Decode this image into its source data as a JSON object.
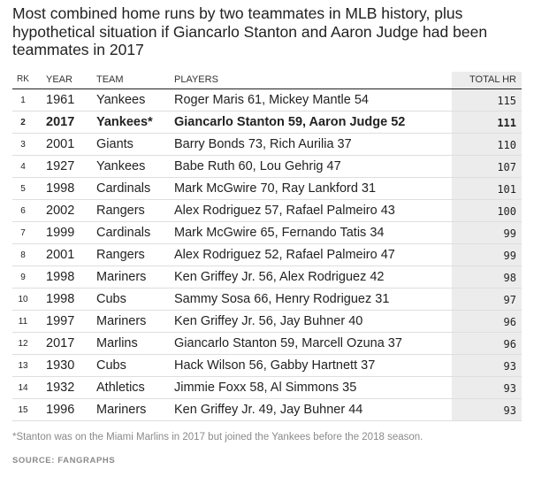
{
  "chart_data": {
    "type": "table",
    "title": "Most combined home runs by two teammates in MLB history, plus hypothetical situation if Giancarlo Stanton and Aaron Judge had been teammates in 2017",
    "columns": [
      "RK",
      "YEAR",
      "TEAM",
      "PLAYERS",
      "TOTAL HR"
    ],
    "rows": [
      {
        "rk": "1",
        "year": "1961",
        "team": "Yankees",
        "players": "Roger Maris 61, Mickey Mantle 54",
        "total_hr": "115",
        "highlight": false
      },
      {
        "rk": "2",
        "year": "2017",
        "team": "Yankees*",
        "players": "Giancarlo Stanton 59, Aaron Judge 52",
        "total_hr": "111",
        "highlight": true
      },
      {
        "rk": "3",
        "year": "2001",
        "team": "Giants",
        "players": "Barry Bonds 73, Rich Aurilia 37",
        "total_hr": "110",
        "highlight": false
      },
      {
        "rk": "4",
        "year": "1927",
        "team": "Yankees",
        "players": "Babe Ruth 60, Lou Gehrig 47",
        "total_hr": "107",
        "highlight": false
      },
      {
        "rk": "5",
        "year": "1998",
        "team": "Cardinals",
        "players": "Mark McGwire 70, Ray Lankford 31",
        "total_hr": "101",
        "highlight": false
      },
      {
        "rk": "6",
        "year": "2002",
        "team": "Rangers",
        "players": "Alex Rodriguez 57, Rafael Palmeiro 43",
        "total_hr": "100",
        "highlight": false
      },
      {
        "rk": "7",
        "year": "1999",
        "team": "Cardinals",
        "players": "Mark McGwire 65, Fernando Tatis 34",
        "total_hr": "99",
        "highlight": false
      },
      {
        "rk": "8",
        "year": "2001",
        "team": "Rangers",
        "players": "Alex Rodriguez 52, Rafael Palmeiro 47",
        "total_hr": "99",
        "highlight": false
      },
      {
        "rk": "9",
        "year": "1998",
        "team": "Mariners",
        "players": "Ken Griffey Jr. 56, Alex Rodriguez 42",
        "total_hr": "98",
        "highlight": false
      },
      {
        "rk": "10",
        "year": "1998",
        "team": "Cubs",
        "players": "Sammy Sosa 66, Henry Rodriguez 31",
        "total_hr": "97",
        "highlight": false
      },
      {
        "rk": "11",
        "year": "1997",
        "team": "Mariners",
        "players": "Ken Griffey Jr. 56, Jay Buhner 40",
        "total_hr": "96",
        "highlight": false
      },
      {
        "rk": "12",
        "year": "2017",
        "team": "Marlins",
        "players": "Giancarlo Stanton 59, Marcell Ozuna 37",
        "total_hr": "96",
        "highlight": false
      },
      {
        "rk": "13",
        "year": "1930",
        "team": "Cubs",
        "players": "Hack Wilson 56, Gabby Hartnett 37",
        "total_hr": "93",
        "highlight": false
      },
      {
        "rk": "14",
        "year": "1932",
        "team": "Athletics",
        "players": "Jimmie Foxx 58, Al Simmons 35",
        "total_hr": "93",
        "highlight": false
      },
      {
        "rk": "15",
        "year": "1996",
        "team": "Mariners",
        "players": "Ken Griffey Jr. 49, Jay Buhner 44",
        "total_hr": "93",
        "highlight": false
      }
    ],
    "footnote": "*Stanton was on the Miami Marlins in 2017 but joined the Yankees before the 2018 season.",
    "source": "SOURCE: FANGRAPHS",
    "colors": {
      "highlight_column": "#ececec",
      "text": "#222222",
      "muted": "#8a8a8a"
    }
  }
}
